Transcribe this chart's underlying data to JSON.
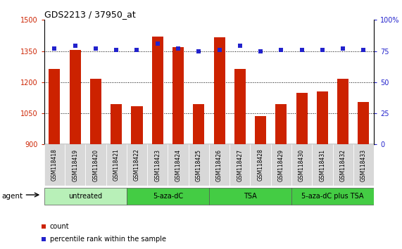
{
  "title": "GDS2213 / 37950_at",
  "samples": [
    "GSM118418",
    "GSM118419",
    "GSM118420",
    "GSM118421",
    "GSM118422",
    "GSM118423",
    "GSM118424",
    "GSM118425",
    "GSM118426",
    "GSM118427",
    "GSM118428",
    "GSM118429",
    "GSM118430",
    "GSM118431",
    "GSM118432",
    "GSM118433"
  ],
  "counts": [
    1265,
    1355,
    1215,
    1095,
    1085,
    1420,
    1370,
    1095,
    1415,
    1265,
    1035,
    1095,
    1150,
    1155,
    1215,
    1105
  ],
  "percentiles": [
    77,
    79,
    77,
    76,
    76,
    81,
    77,
    75,
    76,
    79,
    75,
    76,
    76,
    76,
    77,
    76
  ],
  "bar_color": "#cc2200",
  "dot_color": "#2222cc",
  "ylim_left": [
    900,
    1500
  ],
  "ylim_right": [
    0,
    100
  ],
  "yticks_left": [
    900,
    1050,
    1200,
    1350,
    1500
  ],
  "yticks_right": [
    0,
    25,
    50,
    75,
    100
  ],
  "groups": [
    {
      "label": "untreated",
      "start": 0,
      "end": 4,
      "color": "#b8f0b8"
    },
    {
      "label": "5-aza-dC",
      "start": 4,
      "end": 8,
      "color": "#44cc44"
    },
    {
      "label": "TSA",
      "start": 8,
      "end": 12,
      "color": "#44cc44"
    },
    {
      "label": "5-aza-dC plus TSA",
      "start": 12,
      "end": 16,
      "color": "#44cc44"
    }
  ],
  "agent_label": "agent",
  "legend_count_label": "count",
  "legend_pct_label": "percentile rank within the sample",
  "tick_color_left": "#cc2200",
  "tick_color_right": "#2222cc"
}
